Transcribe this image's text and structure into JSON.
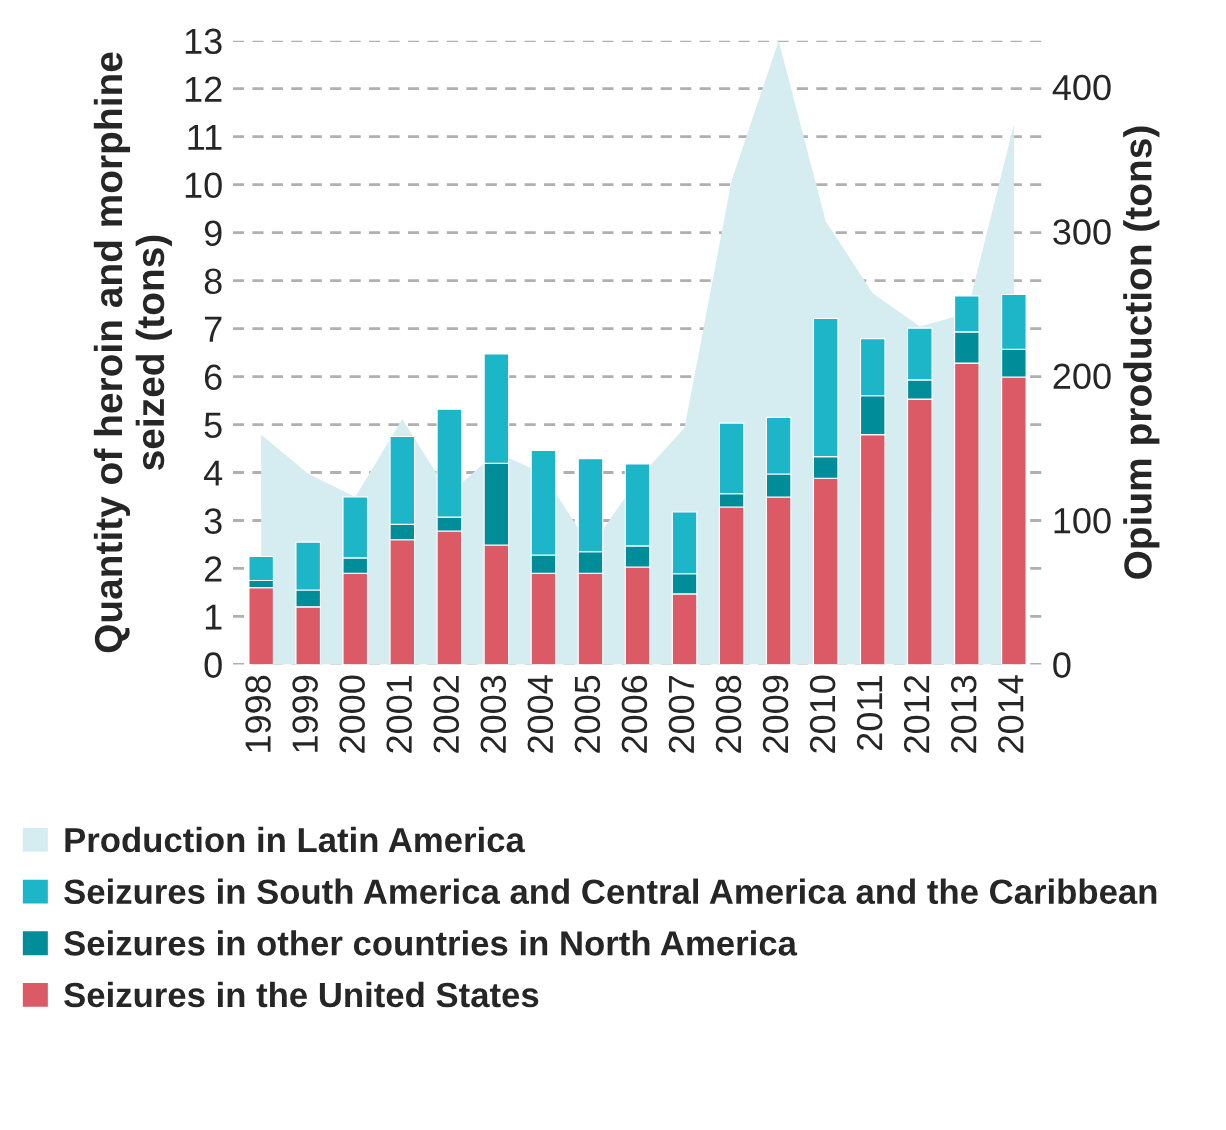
{
  "chart_data": {
    "type": "bar",
    "stacked": true,
    "ylabel": "Quantity of heroin and morphine seized (tons)",
    "y2label": "Opium production (tons)",
    "categories": [
      "1998",
      "1999",
      "2000",
      "2001",
      "2002",
      "2003",
      "2004",
      "2005",
      "2006",
      "2007",
      "2008",
      "2009",
      "2010",
      "2011",
      "2012",
      "2013",
      "2014"
    ],
    "series": [
      {
        "name": "Production in Latin America",
        "type": "area",
        "axis": "y2",
        "color": "#d5ecf0",
        "values": [
          159,
          132,
          116,
          170,
          118,
          147,
          132,
          81,
          128,
          164,
          335,
          432,
          307,
          257,
          234,
          243,
          374
        ]
      },
      {
        "name": "Seizures in the United States",
        "color": "#dc5a66",
        "values": [
          1.6,
          1.2,
          1.9,
          2.6,
          2.78,
          2.49,
          1.9,
          1.9,
          2.03,
          1.47,
          3.28,
          3.49,
          3.88,
          4.79,
          5.53,
          6.28,
          5.99
        ]
      },
      {
        "name": "Seizures in other countries in North America",
        "color": "#008d9a",
        "values": [
          0.15,
          0.35,
          0.32,
          0.32,
          0.29,
          1.7,
          0.38,
          0.45,
          0.44,
          0.42,
          0.28,
          0.48,
          0.45,
          0.81,
          0.4,
          0.65,
          0.58
        ]
      },
      {
        "name": "Seizures in South America and Central America and the Caribbean",
        "color": "#1db5c8",
        "values": [
          0.5,
          1.0,
          1.27,
          1.83,
          2.25,
          2.28,
          2.18,
          1.94,
          1.71,
          1.29,
          1.47,
          1.18,
          2.88,
          1.19,
          1.08,
          0.75,
          1.14
        ]
      }
    ],
    "ylim": [
      0,
      13
    ],
    "yticks": [
      0,
      1,
      2,
      3,
      4,
      5,
      6,
      7,
      8,
      9,
      10,
      11,
      12,
      13
    ],
    "y2lim": [
      0,
      432
    ],
    "y2ticks": [
      0,
      100,
      200,
      300,
      400
    ],
    "grid": "y",
    "legend": "bottom"
  }
}
